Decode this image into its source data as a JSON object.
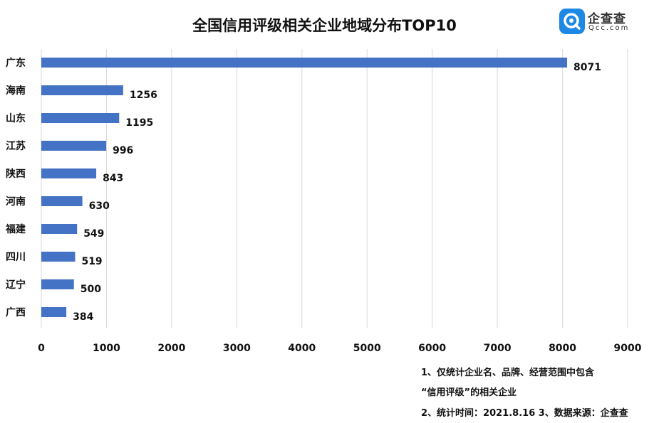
{
  "chart_data": {
    "type": "bar",
    "orientation": "horizontal",
    "title": "全国信用评级相关企业地域分布TOP10",
    "categories": [
      "广东",
      "海南",
      "山东",
      "江苏",
      "陕西",
      "河南",
      "福建",
      "四川",
      "辽宁",
      "广西"
    ],
    "values": [
      8071,
      1256,
      1195,
      996,
      843,
      630,
      549,
      519,
      500,
      384
    ],
    "xlim": [
      0,
      9000
    ],
    "xticks": [
      "0",
      "1000",
      "2000",
      "3000",
      "4000",
      "5000",
      "6000",
      "7000",
      "8000",
      "9000"
    ],
    "grid": true,
    "bar_color": "#4472C4",
    "data_labels": true
  },
  "logo": {
    "name": "企查查",
    "sub": "Qcc.com",
    "icon": "qcc-magnifier-icon",
    "color": "#1E88E5"
  },
  "notes": [
    "1、仅统计企业名、品牌、经营范围中包含",
    "“信用评级”的相关企业",
    "2、统计时间：2021.8.16  3、数据来源：企查查"
  ]
}
